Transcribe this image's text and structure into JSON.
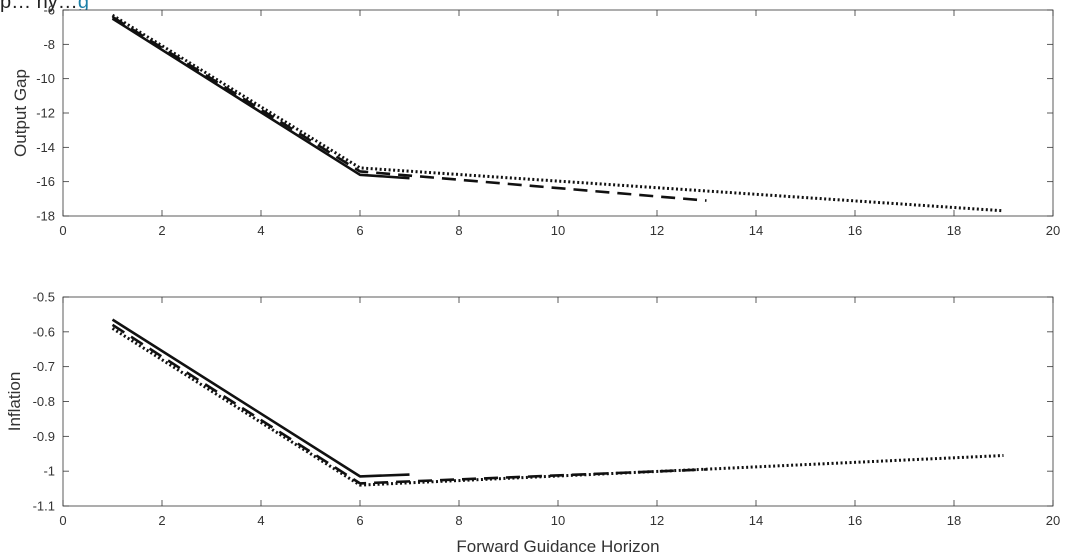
{
  "caption_fragment": {
    "before": "p… ny…",
    "link": "g"
  },
  "chart_data": [
    {
      "type": "line",
      "title": "",
      "xlabel": "",
      "ylabel": "Output Gap",
      "xlim": [
        0,
        20
      ],
      "ylim": [
        -18,
        -6
      ],
      "xticks": [
        0,
        2,
        4,
        6,
        8,
        10,
        12,
        14,
        16,
        18,
        20
      ],
      "yticks": [
        -18,
        -16,
        -14,
        -12,
        -10,
        -8,
        -6
      ],
      "grid": false,
      "series": [
        {
          "style": "solid",
          "x": [
            1,
            6,
            7
          ],
          "y": [
            -6.5,
            -15.6,
            -15.8
          ]
        },
        {
          "style": "dashed",
          "x": [
            1,
            6,
            13
          ],
          "y": [
            -6.4,
            -15.4,
            -17.1
          ]
        },
        {
          "style": "dotted",
          "x": [
            1,
            6,
            19
          ],
          "y": [
            -6.3,
            -15.2,
            -17.7
          ]
        }
      ]
    },
    {
      "type": "line",
      "title": "",
      "xlabel": "Forward Guidance Horizon",
      "ylabel": "Inflation",
      "xlim": [
        0,
        20
      ],
      "ylim": [
        -1.1,
        -0.5
      ],
      "xticks": [
        0,
        2,
        4,
        6,
        8,
        10,
        12,
        14,
        16,
        18,
        20
      ],
      "yticks": [
        -1.1,
        -1,
        -0.9,
        -0.8,
        -0.7,
        -0.6,
        -0.5
      ],
      "grid": false,
      "series": [
        {
          "style": "solid",
          "x": [
            1,
            6,
            7
          ],
          "y": [
            -0.565,
            -1.015,
            -1.01
          ]
        },
        {
          "style": "dashed",
          "x": [
            1,
            6,
            13
          ],
          "y": [
            -0.58,
            -1.035,
            -0.995
          ]
        },
        {
          "style": "dotted",
          "x": [
            1,
            6,
            19
          ],
          "y": [
            -0.59,
            -1.04,
            -0.955
          ]
        }
      ]
    }
  ]
}
